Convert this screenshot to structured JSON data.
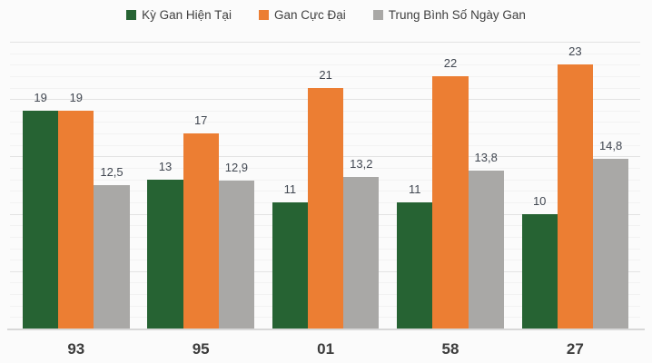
{
  "chart_data": {
    "type": "bar",
    "title": "",
    "xlabel": "",
    "ylabel": "",
    "categories": [
      "93",
      "95",
      "01",
      "58",
      "27"
    ],
    "series": [
      {
        "name": "Kỳ Gan Hiện Tại",
        "color": "#266333",
        "values": [
          19,
          13,
          11,
          11,
          10
        ],
        "labels": [
          "19",
          "13",
          "11",
          "11",
          "10"
        ]
      },
      {
        "name": "Gan Cực Đại",
        "color": "#EC7E33",
        "values": [
          19,
          17,
          21,
          22,
          23
        ],
        "labels": [
          "19",
          "17",
          "21",
          "22",
          "23"
        ]
      },
      {
        "name": "Trung Bình Số Ngày Gan",
        "color": "#A9A8A6",
        "values": [
          12.5,
          12.9,
          13.2,
          13.8,
          14.8
        ],
        "labels": [
          "12,5",
          "12,9",
          "13,2",
          "13,8",
          "14,8"
        ]
      }
    ],
    "ylim": [
      0,
      25
    ],
    "grid": {
      "minor_step": 1,
      "major_step": 5
    },
    "legend_position": "top",
    "value_labels_shown": true,
    "y_axis_labels_shown": false
  }
}
